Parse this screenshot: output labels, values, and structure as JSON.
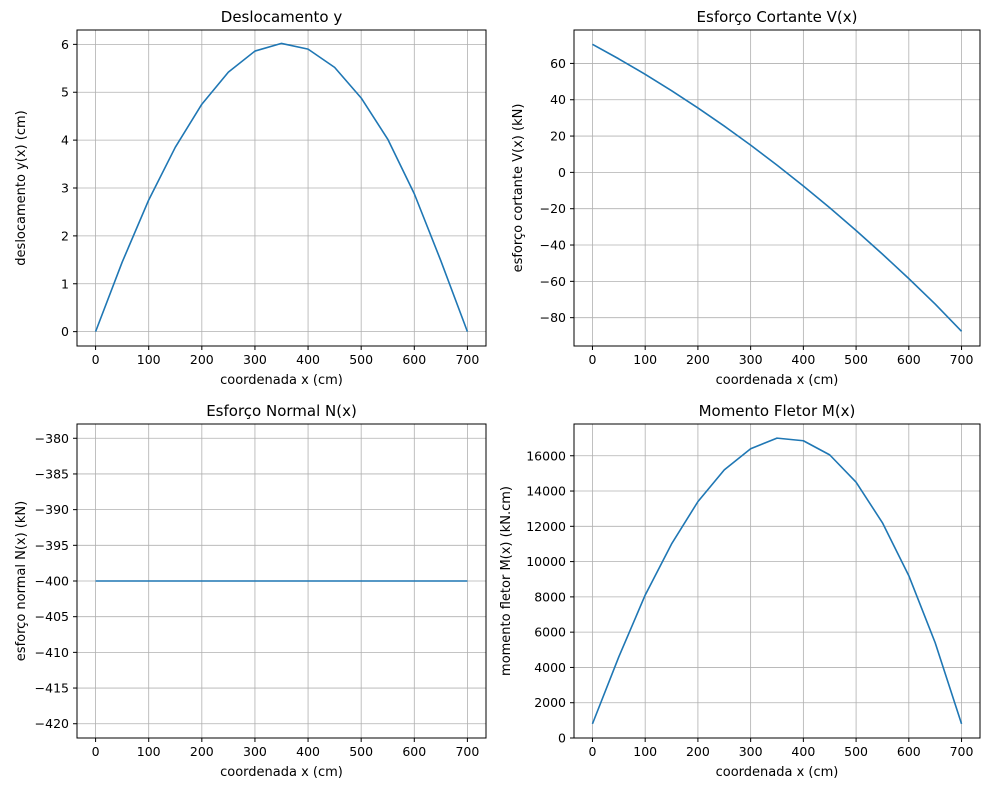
{
  "colors": {
    "line": "#1f77b4",
    "grid": "#b0b0b0"
  },
  "chart_data": [
    {
      "type": "line",
      "title": "Deslocamento y",
      "xlabel": "coordenada x (cm)",
      "ylabel": "deslocamento y(x) (cm)",
      "xlim": [
        -35,
        735
      ],
      "ylim": [
        -0.3,
        6.3
      ],
      "xticks": [
        0,
        100,
        200,
        300,
        400,
        500,
        600,
        700
      ],
      "yticks": [
        0,
        1,
        2,
        3,
        4,
        5,
        6
      ],
      "xticklabels": [
        "0",
        "100",
        "200",
        "300",
        "400",
        "500",
        "600",
        "700"
      ],
      "yticklabels": [
        "0",
        "1",
        "2",
        "3",
        "4",
        "5",
        "6"
      ],
      "grid": true,
      "series": [
        {
          "x": [
            0,
            50,
            100,
            150,
            200,
            250,
            300,
            350,
            400,
            450,
            500,
            550,
            600,
            650,
            700
          ],
          "y": [
            0,
            1.45,
            2.75,
            3.85,
            4.75,
            5.42,
            5.86,
            6.02,
            5.9,
            5.52,
            4.88,
            4.02,
            2.88,
            1.48,
            0
          ]
        }
      ]
    },
    {
      "type": "line",
      "title": "Esforço Cortante V(x)",
      "xlabel": "coordenada x (cm)",
      "ylabel": "esforço cortante V(x) (kN)",
      "xlim": [
        -35,
        735
      ],
      "ylim": [
        -95.6,
        78.4
      ],
      "xticks": [
        0,
        100,
        200,
        300,
        400,
        500,
        600,
        700
      ],
      "yticks": [
        60,
        40,
        20,
        0,
        -20,
        -40,
        -60,
        -80
      ],
      "xticklabels": [
        "0",
        "100",
        "200",
        "300",
        "400",
        "500",
        "600",
        "700"
      ],
      "yticklabels": [
        "60",
        "40",
        "20",
        "0",
        "−20",
        "−40",
        "−60",
        "−80"
      ],
      "grid": true,
      "series": [
        {
          "x": [
            0,
            50,
            100,
            150,
            200,
            250,
            300,
            350,
            400,
            450,
            500,
            550,
            600,
            650,
            700
          ],
          "y": [
            70.5,
            62.5,
            54,
            45,
            35.5,
            25.5,
            15,
            4,
            -7.5,
            -19.5,
            -32,
            -45,
            -58.5,
            -72.5,
            -87.5
          ]
        }
      ]
    },
    {
      "type": "line",
      "title": "Esforço Normal N(x)",
      "xlabel": "coordenada x (cm)",
      "ylabel": "esforço normal N(x) (kN)",
      "xlim": [
        -35,
        735
      ],
      "ylim": [
        -422,
        -378
      ],
      "xticks": [
        0,
        100,
        200,
        300,
        400,
        500,
        600,
        700
      ],
      "yticks": [
        -380,
        -385,
        -390,
        -395,
        -400,
        -405,
        -410,
        -415,
        -420
      ],
      "xticklabels": [
        "0",
        "100",
        "200",
        "300",
        "400",
        "500",
        "600",
        "700"
      ],
      "yticklabels": [
        "−380",
        "−385",
        "−390",
        "−395",
        "−400",
        "−405",
        "−410",
        "−415",
        "−420"
      ],
      "grid": true,
      "series": [
        {
          "x": [
            0,
            700
          ],
          "y": [
            -400,
            -400
          ]
        }
      ]
    },
    {
      "type": "line",
      "title": "Momento Fletor M(x)",
      "xlabel": "coordenada x (cm)",
      "ylabel": "momento fletor M(x) (kN.cm)",
      "xlim": [
        -35,
        735
      ],
      "ylim": [
        0,
        17800
      ],
      "xticks": [
        0,
        100,
        200,
        300,
        400,
        500,
        600,
        700
      ],
      "yticks": [
        0,
        2000,
        4000,
        6000,
        8000,
        10000,
        12000,
        14000,
        16000
      ],
      "xticklabels": [
        "0",
        "100",
        "200",
        "300",
        "400",
        "500",
        "600",
        "700"
      ],
      "yticklabels": [
        "0",
        "2000",
        "4000",
        "6000",
        "8000",
        "10000",
        "12000",
        "14000",
        "16000"
      ],
      "grid": true,
      "series": [
        {
          "x": [
            0,
            50,
            100,
            150,
            200,
            250,
            300,
            350,
            400,
            450,
            500,
            550,
            600,
            650,
            700
          ],
          "y": [
            800,
            4600,
            8100,
            11000,
            13400,
            15200,
            16400,
            17000,
            16850,
            16050,
            14500,
            12200,
            9200,
            5400,
            800
          ]
        }
      ]
    }
  ]
}
